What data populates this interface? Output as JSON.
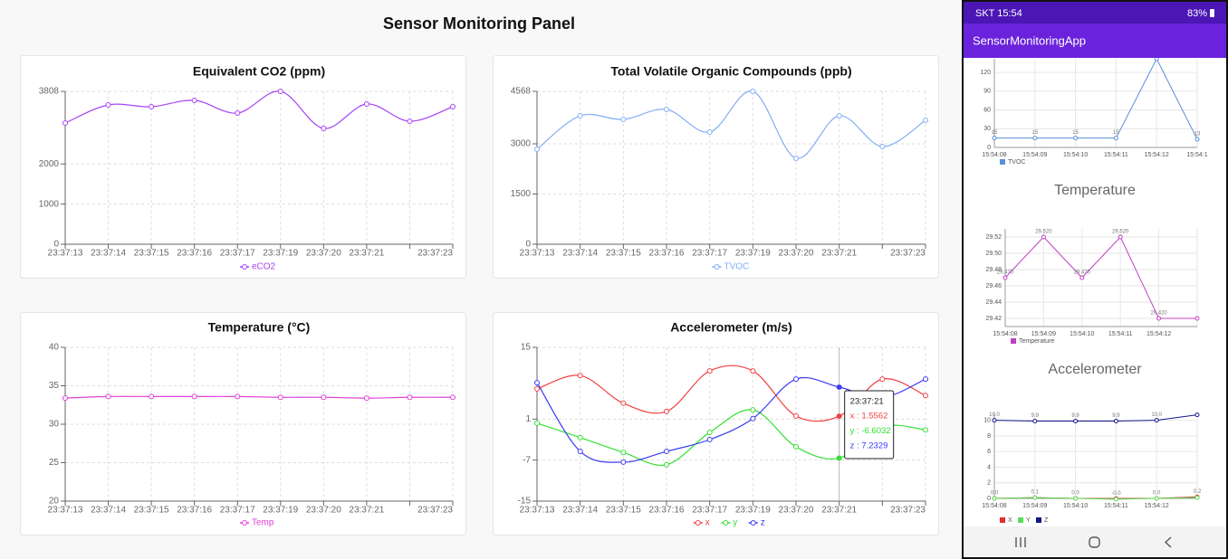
{
  "header": {
    "title": "Sensor Monitoring Panel"
  },
  "phone": {
    "status_time": "SKT 15:54",
    "battery": "83%",
    "app_title": "SensorMonitoringApp"
  },
  "chart_data": [
    {
      "type": "line",
      "title": "Equivalent CO2 (ppm)",
      "categories": [
        "23:37:13",
        "23:37:14",
        "23:37:15",
        "23:37:16",
        "23:37:17",
        "23:37:19",
        "23:37:20",
        "23:37:21",
        null,
        "23:37:23"
      ],
      "series": [
        {
          "name": "eCO2",
          "color": "#a742f5",
          "values": [
            3019,
            3470,
            3425,
            3583,
            3267,
            3808,
            2884,
            3493,
            3064,
            3425
          ]
        }
      ],
      "ylim": [
        0,
        3808
      ],
      "yticks": [
        0,
        1000,
        2000,
        3808
      ],
      "grid": true,
      "legend": "bottom"
    },
    {
      "type": "line",
      "title": "Total Volatile Organic Compounds (ppb)",
      "categories": [
        "23:37:13",
        "23:37:14",
        "23:37:15",
        "23:37:16",
        "23:37:17",
        "23:37:19",
        "23:37:20",
        "23:37:21",
        null,
        "23:37:23"
      ],
      "series": [
        {
          "name": "TVOC",
          "color": "#82aef5",
          "values": [
            2838,
            3838,
            3730,
            4027,
            3352,
            4568,
            2568,
            3838,
            2919,
            3703
          ]
        }
      ],
      "ylim": [
        0,
        4568
      ],
      "yticks": [
        0,
        1500,
        3000,
        4568
      ],
      "grid": true,
      "legend": "bottom"
    },
    {
      "type": "line",
      "title": "Temperature (°C)",
      "categories": [
        "23:37:13",
        "23:37:14",
        "23:37:15",
        "23:37:16",
        "23:37:17",
        "23:37:19",
        "23:37:20",
        "23:37:21",
        null,
        "23:37:23"
      ],
      "series": [
        {
          "name": "Temp",
          "color": "#e040d8",
          "values": [
            33.4,
            33.6,
            33.6,
            33.6,
            33.6,
            33.5,
            33.5,
            33.4,
            33.5,
            33.5
          ]
        }
      ],
      "ylim": [
        20,
        40
      ],
      "yticks": [
        20,
        25,
        30,
        35,
        40
      ],
      "grid": true,
      "legend": "bottom"
    },
    {
      "type": "line",
      "title": "Accelerometer (m/s)",
      "categories": [
        "23:37:13",
        "23:37:14",
        "23:37:15",
        "23:37:16",
        "23:37:17",
        "23:37:19",
        "23:37:20",
        "23:37:21",
        null,
        "23:37:23"
      ],
      "series": [
        {
          "name": "x",
          "color": "#f24040",
          "values": [
            6.9,
            9.5,
            4.1,
            2.5,
            10.4,
            10.4,
            1.6,
            1.5562,
            8.8,
            5.6
          ]
        },
        {
          "name": "y",
          "color": "#33e033",
          "values": [
            0.2,
            -2.6,
            -5.5,
            -7.9,
            -1.6,
            2.8,
            -4.4,
            -6.6032,
            -0.5,
            -1.1
          ]
        },
        {
          "name": "z",
          "color": "#3a3af5",
          "values": [
            8.1,
            -5.3,
            -7.4,
            -5.3,
            -3.0,
            1.1,
            8.8,
            7.2329,
            5.2,
            8.8
          ]
        }
      ],
      "ylim": [
        -15,
        15
      ],
      "yticks": [
        -15,
        -7,
        1,
        15
      ],
      "grid": true,
      "legend": "bottom",
      "tooltip": {
        "title": "23:37:21",
        "lines": [
          "x : 1.5562",
          "y : -6.6032",
          "z : 7.2329"
        ]
      }
    },
    {
      "type": "line",
      "categories": [
        "15:54:08",
        "15:54:09",
        "15:54:10",
        "15:54:11",
        "15:54:12",
        "15:54:1"
      ],
      "series": [
        {
          "name": "TVOC",
          "color": "#5b8fd6",
          "values": [
            15,
            15,
            15,
            15,
            142,
            13
          ]
        }
      ],
      "ylim": [
        0,
        142
      ],
      "yticks": [
        0,
        30,
        60,
        90,
        120
      ],
      "grid": true,
      "legend": "bottom-left"
    },
    {
      "type": "line",
      "title": "Temperature",
      "categories": [
        "15:54:08",
        "15:54:09",
        "15:54:10",
        "15:54:11",
        "15:54:12",
        null
      ],
      "series": [
        {
          "name": "Temperature",
          "color": "#c040c0",
          "values": [
            29.47,
            29.52,
            29.47,
            29.52,
            29.42,
            29.42
          ],
          "value_labels": [
            "29.470",
            "29.520",
            "29.470",
            "29.520",
            "29.420",
            null
          ]
        }
      ],
      "ylim": [
        29.41,
        29.53
      ],
      "yticks": [
        29.42,
        29.44,
        29.46,
        29.48,
        {
          "value": 29.5,
          "label": "29.50"
        },
        29.52
      ],
      "grid": true,
      "legend": "bottom-left"
    },
    {
      "type": "line",
      "title": "Accelerometer",
      "categories": [
        "15:54:08",
        "15:54:09",
        "15:54:10",
        "15:54:11",
        "15:54:12",
        null
      ],
      "series": [
        {
          "name": "X",
          "color": "#e03030",
          "values": [
            0.0,
            0.1,
            0.0,
            -0.02,
            0.0,
            0.2
          ],
          "value_labels": [
            "0.0",
            "0.1",
            "0.0",
            "-0.0",
            "0.0",
            "0.2"
          ]
        },
        {
          "name": "Y",
          "color": "#55e055",
          "values": [
            0.0,
            0.1,
            0.0,
            -0.1,
            0.0,
            0.1
          ]
        },
        {
          "name": "Z",
          "color": "#14148c",
          "values": [
            10.0,
            9.9,
            9.9,
            9.9,
            10.0,
            10.7
          ],
          "value_labels": [
            "10.0",
            "9.9",
            "9.9",
            "9.9",
            "10.0",
            "10.7"
          ]
        }
      ],
      "ylim": [
        0,
        11
      ],
      "yticks": [
        0,
        2,
        4,
        6,
        8,
        10
      ],
      "grid": true,
      "legend": "bottom-left"
    }
  ]
}
